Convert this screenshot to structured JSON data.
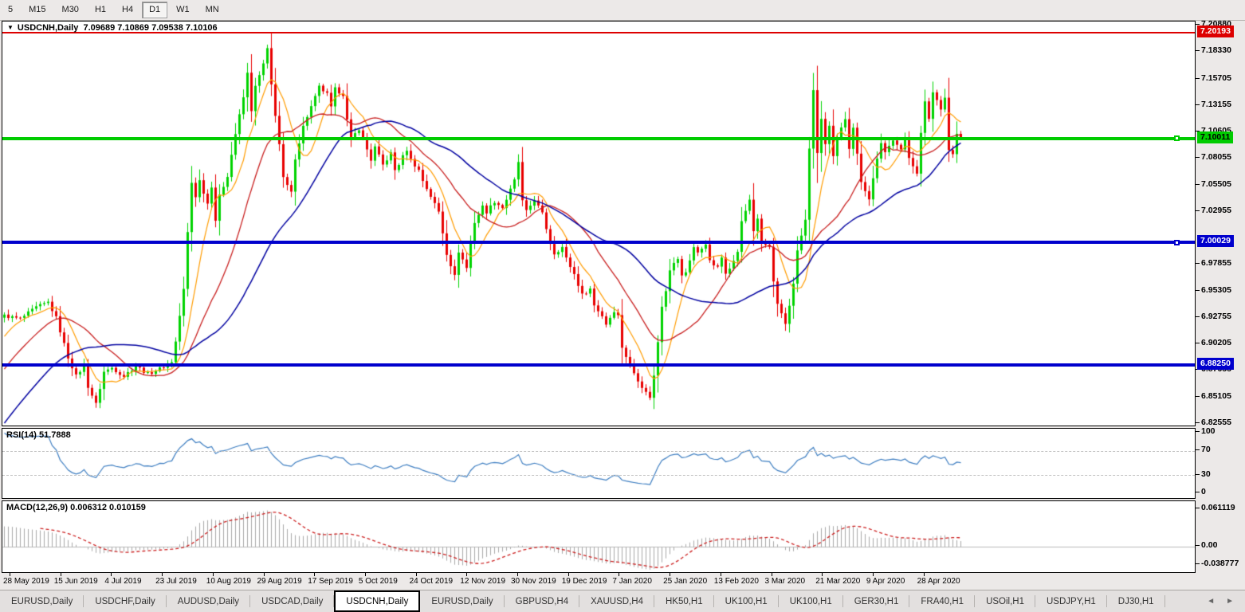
{
  "toolbar": {
    "timeframes": [
      {
        "label": "5",
        "active": false
      },
      {
        "label": "M15",
        "active": false
      },
      {
        "label": "M30",
        "active": false
      },
      {
        "label": "H1",
        "active": false
      },
      {
        "label": "H4",
        "active": false
      },
      {
        "label": "D1",
        "active": true
      },
      {
        "label": "W1",
        "active": false
      },
      {
        "label": "MN",
        "active": false
      }
    ]
  },
  "chart": {
    "symbol_label": "USDCNH,Daily",
    "quotes": "7.09689 7.10869 7.09538 7.10106",
    "dropdown_icon": "▼"
  },
  "price_axis": {
    "labels": [
      "7.20880",
      "7.18330",
      "7.15705",
      "7.13155",
      "7.10605",
      "7.08055",
      "7.05505",
      "7.02955",
      "6.97855",
      "6.95305",
      "6.92755",
      "6.90205",
      "6.87655",
      "6.85105",
      "6.82555"
    ],
    "badges": [
      {
        "value": "7.20193",
        "color": "red"
      },
      {
        "value": "7.10011",
        "color": "green"
      },
      {
        "value": "7.00029",
        "color": "blue"
      },
      {
        "value": "6.88250",
        "color": "blue"
      }
    ]
  },
  "indicators": {
    "rsi": {
      "name": "RSI(14)",
      "value": "51.7888",
      "axis": [
        "100",
        "70",
        "30",
        "0"
      ],
      "upper_level": 70,
      "lower_level": 30
    },
    "macd": {
      "name": "MACD(12,26,9)",
      "value": "0.006312 0.010159",
      "axis": [
        "0.061119",
        "0.00",
        "-0.038777"
      ]
    }
  },
  "date_axis": {
    "labels": [
      "28 May 2019",
      "15 Jun 2019",
      "4 Jul 2019",
      "23 Jul 2019",
      "10 Aug 2019",
      "29 Aug 2019",
      "17 Sep 2019",
      "5 Oct 2019",
      "24 Oct 2019",
      "12 Nov 2019",
      "30 Nov 2019",
      "19 Dec 2019",
      "7 Jan 2020",
      "25 Jan 2020",
      "13 Feb 2020",
      "3 Mar 2020",
      "21 Mar 2020",
      "9 Apr 2020",
      "28 Apr 2020"
    ]
  },
  "tabs": {
    "items": [
      {
        "label": "EURUSD,Daily",
        "active": false
      },
      {
        "label": "USDCHF,Daily",
        "active": false
      },
      {
        "label": "AUDUSD,Daily",
        "active": false
      },
      {
        "label": "USDCAD,Daily",
        "active": false
      },
      {
        "label": "USDCNH,Daily",
        "active": true
      },
      {
        "label": "EURUSD,Daily",
        "active": false
      },
      {
        "label": "GBPUSD,H4",
        "active": false
      },
      {
        "label": "XAUUSD,H4",
        "active": false
      },
      {
        "label": "HK50,H1",
        "active": false
      },
      {
        "label": "UK100,H1",
        "active": false
      },
      {
        "label": "UK100,H1",
        "active": false
      },
      {
        "label": "GER30,H1",
        "active": false
      },
      {
        "label": "FRA40,H1",
        "active": false
      },
      {
        "label": "USOil,H1",
        "active": false
      },
      {
        "label": "USDJPY,H1",
        "active": false
      },
      {
        "label": "DJ30,H1",
        "active": false
      }
    ],
    "scroll_left": "◄",
    "scroll_right": "►"
  },
  "colors": {
    "candle_up": "#00d300",
    "candle_down": "#e80000",
    "ma_fast": "#ff9c00",
    "ma_mid": "#c81e1e",
    "ma_slow": "#0000a0",
    "rsi_line": "#3e7ec1",
    "macd_hist": "#a8a8a8",
    "macd_signal": "#cc2020",
    "level_red": "#dd0000",
    "level_green": "#00cc00",
    "level_blue": "#0000cd"
  },
  "chart_data": {
    "type": "candlestick",
    "symbol": "USDCNH",
    "timeframe": "Daily",
    "title": "USDCNH,Daily",
    "current_open": 7.09689,
    "current_high": 7.10869,
    "current_low": 7.09538,
    "current_close": 7.10106,
    "y_axis_range": [
      6.82555,
      7.2088
    ],
    "x_start_label": "28 May 2019",
    "x_end_label": "28 Apr 2020",
    "bars": 241,
    "levels": [
      {
        "price": 7.20193,
        "color": "#dd0000",
        "style": "thin"
      },
      {
        "price": 7.10011,
        "color": "#00cc00",
        "style": "thick"
      },
      {
        "price": 7.00029,
        "color": "#0000cd",
        "style": "thick"
      },
      {
        "price": 6.8825,
        "color": "#0000cd",
        "style": "thick"
      }
    ],
    "moving_averages": [
      {
        "period": 8,
        "color": "#ff9c00"
      },
      {
        "period": 20,
        "color": "#c81e1e"
      },
      {
        "period": 40,
        "color": "#0000a0"
      }
    ],
    "rsi_period": 14,
    "macd_params": [
      12,
      26,
      9
    ],
    "macd_axis_max": 0.061119,
    "macd_axis_min": -0.038777,
    "lead_in_trend": [
      6.72,
      6.928
    ],
    "close_path": [
      [
        0,
        6.93
      ],
      [
        4,
        6.927
      ],
      [
        8,
        6.938
      ],
      [
        11,
        6.943
      ],
      [
        13,
        6.928
      ],
      [
        16,
        6.89
      ],
      [
        18,
        6.872
      ],
      [
        20,
        6.882
      ],
      [
        21,
        6.862
      ],
      [
        23,
        6.845
      ],
      [
        25,
        6.876
      ],
      [
        27,
        6.88
      ],
      [
        30,
        6.872
      ],
      [
        33,
        6.882
      ],
      [
        36,
        6.874
      ],
      [
        39,
        6.879
      ],
      [
        42,
        6.886
      ],
      [
        43,
        6.905
      ],
      [
        45,
        6.955
      ],
      [
        46,
        7.01
      ],
      [
        47,
        7.058
      ],
      [
        48,
        7.045
      ],
      [
        49,
        7.06
      ],
      [
        51,
        7.038
      ],
      [
        52,
        7.055
      ],
      [
        53,
        7.022
      ],
      [
        54,
        7.045
      ],
      [
        56,
        7.065
      ],
      [
        58,
        7.105
      ],
      [
        60,
        7.14
      ],
      [
        61,
        7.163
      ],
      [
        62,
        7.128
      ],
      [
        63,
        7.15
      ],
      [
        65,
        7.172
      ],
      [
        66,
        7.186
      ],
      [
        67,
        7.152
      ],
      [
        69,
        7.095
      ],
      [
        70,
        7.062
      ],
      [
        72,
        7.048
      ],
      [
        73,
        7.082
      ],
      [
        75,
        7.112
      ],
      [
        76,
        7.122
      ],
      [
        78,
        7.14
      ],
      [
        79,
        7.15
      ],
      [
        81,
        7.143
      ],
      [
        82,
        7.13
      ],
      [
        83,
        7.148
      ],
      [
        85,
        7.143
      ],
      [
        86,
        7.118
      ],
      [
        87,
        7.1
      ],
      [
        89,
        7.11
      ],
      [
        91,
        7.09
      ],
      [
        92,
        7.08
      ],
      [
        93,
        7.092
      ],
      [
        95,
        7.075
      ],
      [
        97,
        7.086
      ],
      [
        98,
        7.07
      ],
      [
        99,
        7.076
      ],
      [
        101,
        7.09
      ],
      [
        102,
        7.08
      ],
      [
        104,
        7.07
      ],
      [
        105,
        7.06
      ],
      [
        107,
        7.045
      ],
      [
        109,
        7.03
      ],
      [
        110,
        7.01
      ],
      [
        111,
        6.99
      ],
      [
        113,
        6.968
      ],
      [
        114,
        6.992
      ],
      [
        116,
        6.976
      ],
      [
        117,
        7.0
      ],
      [
        118,
        7.02
      ],
      [
        120,
        7.035
      ],
      [
        121,
        7.03
      ],
      [
        123,
        7.04
      ],
      [
        125,
        7.034
      ],
      [
        126,
        7.042
      ],
      [
        128,
        7.06
      ],
      [
        129,
        7.078
      ],
      [
        130,
        7.04
      ],
      [
        131,
        7.03
      ],
      [
        133,
        7.042
      ],
      [
        134,
        7.035
      ],
      [
        135,
        7.028
      ],
      [
        137,
        7.0
      ],
      [
        138,
        6.99
      ],
      [
        140,
        6.996
      ],
      [
        141,
        6.985
      ],
      [
        143,
        6.97
      ],
      [
        144,
        6.96
      ],
      [
        145,
        6.95
      ],
      [
        147,
        6.956
      ],
      [
        148,
        6.94
      ],
      [
        150,
        6.93
      ],
      [
        151,
        6.922
      ],
      [
        153,
        6.935
      ],
      [
        154,
        6.93
      ],
      [
        155,
        6.9
      ],
      [
        157,
        6.882
      ],
      [
        158,
        6.875
      ],
      [
        160,
        6.862
      ],
      [
        161,
        6.856
      ],
      [
        162,
        6.852
      ],
      [
        163,
        6.872
      ],
      [
        164,
        6.905
      ],
      [
        165,
        6.94
      ],
      [
        166,
        6.955
      ],
      [
        167,
        6.975
      ],
      [
        169,
        6.985
      ],
      [
        170,
        6.968
      ],
      [
        171,
        6.972
      ],
      [
        173,
        6.996
      ],
      [
        174,
        6.99
      ],
      [
        176,
        7.0
      ],
      [
        177,
        6.982
      ],
      [
        179,
        6.976
      ],
      [
        180,
        6.986
      ],
      [
        181,
        6.972
      ],
      [
        183,
        6.982
      ],
      [
        184,
        6.992
      ],
      [
        185,
        7.02
      ],
      [
        187,
        7.042
      ],
      [
        188,
        7.012
      ],
      [
        189,
        7.022
      ],
      [
        190,
        7.0
      ],
      [
        192,
        6.996
      ],
      [
        193,
        6.962
      ],
      [
        194,
        6.94
      ],
      [
        196,
        6.922
      ],
      [
        197,
        6.94
      ],
      [
        198,
        6.962
      ],
      [
        199,
        6.992
      ],
      [
        201,
        7.022
      ],
      [
        202,
        7.09
      ],
      [
        203,
        7.148
      ],
      [
        204,
        7.085
      ],
      [
        205,
        7.12
      ],
      [
        206,
        7.095
      ],
      [
        207,
        7.112
      ],
      [
        208,
        7.082
      ],
      [
        209,
        7.1
      ],
      [
        211,
        7.12
      ],
      [
        212,
        7.092
      ],
      [
        213,
        7.112
      ],
      [
        214,
        7.085
      ],
      [
        215,
        7.06
      ],
      [
        217,
        7.042
      ],
      [
        218,
        7.062
      ],
      [
        219,
        7.082
      ],
      [
        220,
        7.095
      ],
      [
        221,
        7.086
      ],
      [
        223,
        7.1
      ],
      [
        224,
        7.096
      ],
      [
        225,
        7.09
      ],
      [
        226,
        7.1
      ],
      [
        227,
        7.082
      ],
      [
        229,
        7.068
      ],
      [
        230,
        7.105
      ],
      [
        231,
        7.135
      ],
      [
        232,
        7.12
      ],
      [
        233,
        7.145
      ],
      [
        235,
        7.13
      ],
      [
        236,
        7.14
      ],
      [
        237,
        7.09
      ],
      [
        238,
        7.085
      ],
      [
        239,
        7.105
      ],
      [
        240,
        7.10106
      ]
    ]
  }
}
